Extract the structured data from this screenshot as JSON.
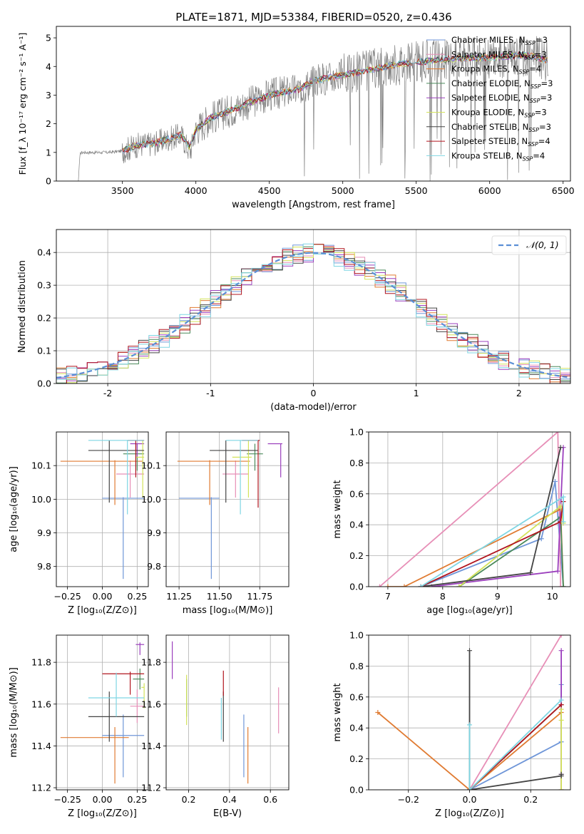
{
  "chart_data": [
    {
      "id": "spectrum",
      "type": "line",
      "title": "PLATE=1871, MJD=53384, FIBERID=0520, z=0.436",
      "xlabel": "wavelength [Angstrom, rest frame]",
      "ylabel": "Flux [f_λ 10⁻¹⁷ erg cm⁻² s⁻¹ A⁻¹]",
      "xlim": [
        3050,
        6550
      ],
      "ylim": [
        0,
        5.4
      ],
      "xticks": [
        3500,
        4000,
        4500,
        5000,
        5500,
        6000,
        6500
      ],
      "yticks": [
        0,
        1,
        2,
        3,
        4,
        5
      ],
      "grid": false,
      "legend_position": "top-right",
      "data_color": "#808080",
      "data_x": [
        3200,
        3210,
        3220,
        3300,
        3400,
        3500,
        3600,
        3700,
        3800,
        3900,
        3960,
        4000,
        4100,
        4200,
        4300,
        4400,
        4500,
        4600,
        4700,
        4800,
        4900,
        5000,
        5100,
        5200,
        5300,
        5400,
        5500,
        5600,
        5700,
        5800,
        5900,
        6000,
        6100,
        6200,
        6300,
        6400
      ],
      "data_y": [
        0,
        0.9,
        1.0,
        1.0,
        1.0,
        1.05,
        1.25,
        1.3,
        1.45,
        1.6,
        1.0,
        1.8,
        2.2,
        2.4,
        2.6,
        2.8,
        3.0,
        3.1,
        3.2,
        3.5,
        3.6,
        3.7,
        3.8,
        3.9,
        4.0,
        4.1,
        4.15,
        4.2,
        4.25,
        4.3,
        4.3,
        4.3,
        4.35,
        4.4,
        4.35,
        4.2
      ],
      "model_x": [
        3500,
        3600,
        3700,
        3800,
        3900,
        3960,
        4000,
        4100,
        4200,
        4300,
        4400,
        4500,
        4600,
        4700,
        4800,
        4900,
        5000,
        5100,
        5200,
        5300,
        5400,
        5500,
        5600,
        5700,
        5800,
        5900,
        6000,
        6100,
        6200,
        6300,
        6400
      ],
      "model_y": [
        1.05,
        1.25,
        1.3,
        1.45,
        1.6,
        1.2,
        1.8,
        2.2,
        2.4,
        2.6,
        2.8,
        3.0,
        3.1,
        3.2,
        3.5,
        3.6,
        3.7,
        3.8,
        3.9,
        4.0,
        4.1,
        4.15,
        4.2,
        4.25,
        4.3,
        4.3,
        4.3,
        4.35,
        4.4,
        4.35,
        4.2
      ],
      "series": [
        {
          "name": "Chabrier MILES, N_SSP=3",
          "color": "#6f96d8"
        },
        {
          "name": "Salpeter MILES, N_SSP=3",
          "color": "#e78fb7"
        },
        {
          "name": "Kroupa MILES, N_SSP=4",
          "color": "#e07b32"
        },
        {
          "name": "Chabrier ELODIE, N_SSP=3",
          "color": "#4b8a5b"
        },
        {
          "name": "Salpeter ELODIE, N_SSP=3",
          "color": "#9b3fbd"
        },
        {
          "name": "Kroupa ELODIE, N_SSP=3",
          "color": "#d3e35a"
        },
        {
          "name": "Chabrier STELIB, N_SSP=3",
          "color": "#444444"
        },
        {
          "name": "Salpeter STELIB, N_SSP=4",
          "color": "#b1151e"
        },
        {
          "name": "Kroupa STELIB, N_SSP=4",
          "color": "#7fd6e3"
        }
      ]
    },
    {
      "id": "residuals",
      "type": "histogram",
      "xlabel": "(data-model)/error",
      "ylabel": "Normed distribution",
      "xlim": [
        -2.5,
        2.5
      ],
      "ylim": [
        0,
        0.47
      ],
      "xticks": [
        -2,
        -1,
        0,
        1,
        2
      ],
      "yticks": [
        0.0,
        0.1,
        0.2,
        0.3,
        0.4
      ],
      "grid": true,
      "legend": [
        {
          "name": "𝒩(0, 1)",
          "color": "#5b8fd6",
          "style": "dashed"
        }
      ],
      "legend_position": "top-right",
      "bin_width": 0.1,
      "reference_curve": "gaussian N(0,1)"
    },
    {
      "id": "age-vs-Z",
      "type": "errorbar",
      "xlabel": "Z [log₁₀(Z/Z⊙)]",
      "ylabel": "age  [log₁₀(age/yr)]",
      "xlim": [
        -0.33,
        0.33
      ],
      "ylim": [
        9.74,
        10.2
      ],
      "xticks": [
        -0.25,
        0.0,
        0.25
      ],
      "xticklabels": [
        "−0.25",
        "0.00",
        "0.25"
      ],
      "yticks": [
        9.8,
        9.9,
        10.0,
        10.1
      ],
      "grid": true,
      "points": [
        {
          "series": "Chabrier MILES",
          "x": 0.15,
          "xerr": [
            0.15,
            0.15
          ],
          "y": 10.003,
          "yerr": [
            0.24,
            0.003
          ]
        },
        {
          "series": "Salpeter MILES",
          "x": 0.2,
          "xerr": [
            0.1,
            0.1
          ],
          "y": 10.075,
          "yerr": [
            0.07,
            0.04
          ]
        },
        {
          "series": "Kroupa MILES",
          "x": 0.09,
          "xerr": [
            0.39,
            0.2
          ],
          "y": 10.113,
          "yerr": [
            0.13,
            0.003
          ]
        },
        {
          "series": "Chabrier ELODIE",
          "x": 0.25,
          "xerr": [
            0.1,
            0.05
          ],
          "y": 10.135,
          "yerr": [
            0.05,
            0.03
          ]
        },
        {
          "series": "Salpeter ELODIE",
          "x": 0.25,
          "xerr": [
            0.05,
            0.05
          ],
          "y": 10.165,
          "yerr": [
            0.04,
            0.0
          ]
        },
        {
          "series": "Kroupa ELODIE",
          "x": 0.29,
          "xerr": [
            0.05,
            0.01
          ],
          "y": 10.125,
          "yerr": [
            0.12,
            0.05
          ]
        },
        {
          "series": "Chabrier STELIB",
          "x": 0.05,
          "xerr": [
            0.15,
            0.25
          ],
          "y": 10.145,
          "yerr": [
            0.155,
            0.03
          ]
        },
        {
          "series": "Salpeter STELIB",
          "x": 0.24,
          "xerr": [
            0.06,
            0.06
          ],
          "y": 10.175,
          "yerr": [
            0.11,
            0.0
          ]
        },
        {
          "series": "Kroupa STELIB",
          "x": 0.18,
          "xerr": [
            0.28,
            0.12
          ],
          "y": 10.175,
          "yerr": [
            0.22,
            0.0
          ]
        }
      ]
    },
    {
      "id": "age-vs-mass",
      "type": "errorbar",
      "xlabel": "mass [log₁₀(M/M⊙)]",
      "xlim": [
        11.17,
        11.93
      ],
      "ylim": [
        9.74,
        10.2
      ],
      "xticks": [
        11.25,
        11.5,
        11.75
      ],
      "xticklabels": [
        "11.25",
        "11.50",
        "11.75"
      ],
      "yticks": [
        9.8,
        9.9,
        10.0,
        10.1
      ],
      "grid": true,
      "points": [
        {
          "series": "Chabrier MILES",
          "x": 11.45,
          "xerr": [
            0.2,
            0.05
          ],
          "y": 10.003,
          "yerr": [
            0.24,
            0.003
          ]
        },
        {
          "series": "Salpeter MILES",
          "x": 11.6,
          "xerr": [
            0.08,
            0.08
          ],
          "y": 10.075,
          "yerr": [
            0.07,
            0.04
          ]
        },
        {
          "series": "Kroupa MILES",
          "x": 11.44,
          "xerr": [
            0.2,
            0.25
          ],
          "y": 10.113,
          "yerr": [
            0.13,
            0.003
          ]
        },
        {
          "series": "Chabrier ELODIE",
          "x": 11.72,
          "xerr": [
            0.05,
            0.05
          ],
          "y": 10.135,
          "yerr": [
            0.05,
            0.03
          ]
        },
        {
          "series": "Salpeter ELODIE",
          "x": 11.88,
          "xerr": [
            0.08,
            0.01
          ],
          "y": 10.165,
          "yerr": [
            0.1,
            0.0
          ]
        },
        {
          "series": "Kroupa ELODIE",
          "x": 11.68,
          "xerr": [
            0.1,
            0.02
          ],
          "y": 10.125,
          "yerr": [
            0.12,
            0.05
          ]
        },
        {
          "series": "Chabrier STELIB",
          "x": 11.54,
          "xerr": [
            0.1,
            0.2
          ],
          "y": 10.145,
          "yerr": [
            0.155,
            0.03
          ]
        },
        {
          "series": "Salpeter STELIB",
          "x": 11.74,
          "xerr": [
            0.1,
            0.01
          ],
          "y": 10.175,
          "yerr": [
            0.2,
            0.0
          ]
        },
        {
          "series": "Kroupa STELIB",
          "x": 11.63,
          "xerr": [
            0.09,
            0.11
          ],
          "y": 10.175,
          "yerr": [
            0.22,
            0.0
          ]
        }
      ]
    },
    {
      "id": "mass-weight-vs-age",
      "type": "line",
      "xlabel": "age  [log₁₀(age/yr)]",
      "ylabel": "mass weight",
      "xlim": [
        6.65,
        10.33
      ],
      "ylim": [
        0,
        1.0
      ],
      "xticks": [
        7,
        8,
        9,
        10
      ],
      "yticks": [
        0.0,
        0.2,
        0.4,
        0.6,
        0.8,
        1.0
      ],
      "grid": true,
      "series": [
        {
          "name": "Chabrier MILES",
          "x": [
            7.6,
            9.8,
            10.05,
            10.2
          ],
          "y": [
            0.0,
            0.31,
            0.68,
            0.0
          ]
        },
        {
          "name": "Salpeter MILES",
          "x": [
            6.85,
            10.1,
            10.15
          ],
          "y": [
            0.0,
            1.0,
            0.0
          ]
        },
        {
          "name": "Kroupa MILES",
          "x": [
            7.0,
            7.3,
            10.15,
            10.2
          ],
          "y": [
            0.0,
            0.0,
            0.5,
            0.0
          ]
        },
        {
          "name": "Chabrier ELODIE",
          "x": [
            8.3,
            10.15,
            10.2
          ],
          "y": [
            0.0,
            0.45,
            0.0
          ]
        },
        {
          "name": "Salpeter ELODIE",
          "x": [
            7.8,
            10.1,
            10.2
          ],
          "y": [
            0.0,
            0.1,
            0.9
          ]
        },
        {
          "name": "Kroupa ELODIE",
          "x": [
            8.3,
            10.15,
            10.2
          ],
          "y": [
            0.0,
            0.52,
            0.41
          ]
        },
        {
          "name": "Chabrier STELIB",
          "x": [
            7.6,
            9.6,
            10.15
          ],
          "y": [
            0.0,
            0.09,
            0.9
          ]
        },
        {
          "name": "Salpeter STELIB",
          "x": [
            7.6,
            10.15,
            10.2
          ],
          "y": [
            0.0,
            0.42,
            0.55
          ]
        },
        {
          "name": "Kroupa STELIB",
          "x": [
            7.6,
            10.2,
            10.2
          ],
          "y": [
            0.0,
            0.58,
            0.42
          ]
        }
      ]
    },
    {
      "id": "mass-vs-Z",
      "type": "errorbar",
      "xlabel": "Z [log₁₀(Z/Z⊙)]",
      "ylabel": "mass [log₁₀(M/M⊙)]",
      "xlim": [
        -0.33,
        0.33
      ],
      "ylim": [
        11.19,
        11.93
      ],
      "xticks": [
        -0.25,
        0.0,
        0.25
      ],
      "xticklabels": [
        "−0.25",
        "0.00",
        "0.25"
      ],
      "yticks": [
        11.2,
        11.4,
        11.6,
        11.8
      ],
      "grid": true,
      "points": [
        {
          "series": "Chabrier MILES",
          "x": 0.15,
          "xerr": [
            0.15,
            0.15
          ],
          "y": 11.45,
          "yerr": [
            0.2,
            0.1
          ]
        },
        {
          "series": "Salpeter MILES",
          "x": 0.25,
          "xerr": [
            0.05,
            0.05
          ],
          "y": 11.59,
          "yerr": [
            0.08,
            0.08
          ]
        },
        {
          "series": "Kroupa MILES",
          "x": 0.09,
          "xerr": [
            0.39,
            0.1
          ],
          "y": 11.44,
          "yerr": [
            0.22,
            0.05
          ]
        },
        {
          "series": "Chabrier ELODIE",
          "x": 0.27,
          "xerr": [
            0.05,
            0.03
          ],
          "y": 11.72,
          "yerr": [
            0.05,
            0.05
          ]
        },
        {
          "series": "Salpeter ELODIE",
          "x": 0.27,
          "xerr": [
            0.03,
            0.03
          ],
          "y": 11.885,
          "yerr": [
            0.05,
            0.01
          ]
        },
        {
          "series": "Kroupa ELODIE",
          "x": 0.3,
          "xerr": [
            0.02,
            0.0
          ],
          "y": 11.68,
          "yerr": [
            0.1,
            0.02
          ]
        },
        {
          "series": "Chabrier STELIB",
          "x": 0.05,
          "xerr": [
            0.15,
            0.25
          ],
          "y": 11.54,
          "yerr": [
            0.12,
            0.12
          ]
        },
        {
          "series": "Salpeter STELIB",
          "x": 0.2,
          "xerr": [
            0.2,
            0.1
          ],
          "y": 11.745,
          "yerr": [
            0.1,
            0.01
          ]
        },
        {
          "series": "Kroupa STELIB",
          "x": 0.1,
          "xerr": [
            0.2,
            0.2
          ],
          "y": 11.63,
          "yerr": [
            0.09,
            0.12
          ]
        }
      ]
    },
    {
      "id": "mass-vs-EBV",
      "type": "errorbar",
      "xlabel": "E(B-V)",
      "xlim": [
        0.09,
        0.69
      ],
      "ylim": [
        11.19,
        11.93
      ],
      "xticks": [
        0.2,
        0.4,
        0.6
      ],
      "yticks": [
        11.2,
        11.4,
        11.6,
        11.8
      ],
      "grid": true,
      "points": [
        {
          "series": "Chabrier MILES",
          "x": 0.47,
          "y": 11.45,
          "yerr": [
            0.2,
            0.1
          ]
        },
        {
          "series": "Salpeter MILES",
          "x": 0.64,
          "y": 11.57,
          "yerr": [
            0.11,
            0.11
          ]
        },
        {
          "series": "Kroupa MILES",
          "x": 0.49,
          "y": 11.36,
          "yerr": [
            0.14,
            0.13
          ]
        },
        {
          "series": "Chabrier ELODIE",
          "x": 0.19,
          "y": 11.63,
          "yerr": [
            0.09,
            0.09
          ]
        },
        {
          "series": "Salpeter ELODIE",
          "x": 0.12,
          "y": 11.81,
          "yerr": [
            0.09,
            0.09
          ]
        },
        {
          "series": "Kroupa ELODIE",
          "x": 0.19,
          "y": 11.62,
          "yerr": [
            0.12,
            0.12
          ]
        },
        {
          "series": "Chabrier STELIB",
          "x": 0.37,
          "y": 11.54,
          "yerr": [
            0.12,
            0.12
          ]
        },
        {
          "series": "Salpeter STELIB",
          "x": 0.37,
          "y": 11.7,
          "yerr": [
            0.06,
            0.06
          ]
        },
        {
          "series": "Kroupa STELIB",
          "x": 0.36,
          "y": 11.53,
          "yerr": [
            0.1,
            0.1
          ]
        }
      ]
    },
    {
      "id": "mass-weight-vs-Z",
      "type": "line",
      "xlabel": "Z [log₁₀(Z/Z⊙)]",
      "ylabel": "mass weight",
      "xlim": [
        -0.33,
        0.33
      ],
      "ylim": [
        0,
        1.0
      ],
      "xticks": [
        -0.2,
        0.0,
        0.2
      ],
      "xticklabels": [
        "−0.2",
        "0.0",
        "0.2"
      ],
      "yticks": [
        0.0,
        0.2,
        0.4,
        0.6,
        0.8,
        1.0
      ],
      "grid": true,
      "series": [
        {
          "name": "Chabrier MILES",
          "x": [
            0.0,
            0.3,
            0.3
          ],
          "y": [
            0.0,
            0.31,
            0.68
          ]
        },
        {
          "name": "Salpeter MILES",
          "x": [
            0.0,
            0.3
          ],
          "y": [
            0.0,
            1.0
          ]
        },
        {
          "name": "Kroupa MILES",
          "x": [
            -0.3,
            0.0,
            0.3
          ],
          "y": [
            0.5,
            0.0,
            0.5
          ]
        },
        {
          "name": "Chabrier ELODIE",
          "x": [
            0.0,
            0.3
          ],
          "y": [
            0.0,
            0.55
          ]
        },
        {
          "name": "Salpeter ELODIE",
          "x": [
            0.3,
            0.3,
            0.3
          ],
          "y": [
            0.0,
            0.1,
            0.9
          ]
        },
        {
          "name": "Kroupa ELODIE",
          "x": [
            0.3,
            0.3,
            0.3
          ],
          "y": [
            0.0,
            0.45,
            0.52
          ]
        },
        {
          "name": "Chabrier STELIB",
          "x": [
            0.0,
            0.0,
            0.3,
            0.3
          ],
          "y": [
            0.9,
            0.0,
            0.09,
            0.1
          ]
        },
        {
          "name": "Salpeter STELIB",
          "x": [
            0.0,
            0.3
          ],
          "y": [
            0.0,
            0.55
          ]
        },
        {
          "name": "Kroupa STELIB",
          "x": [
            0.0,
            0.0,
            0.3
          ],
          "y": [
            0.42,
            0.0,
            0.58
          ]
        }
      ]
    }
  ]
}
